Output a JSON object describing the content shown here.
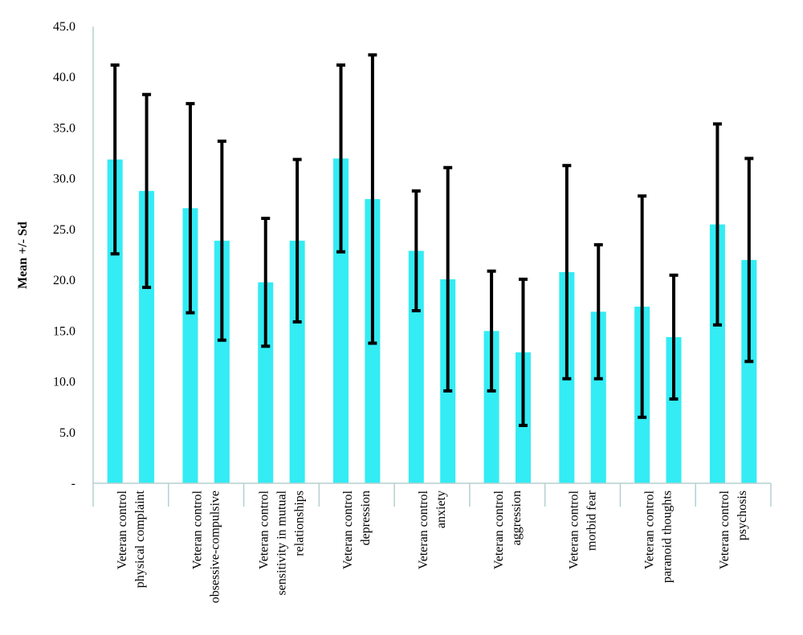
{
  "chart_data": {
    "type": "bar",
    "title": "",
    "xlabel": "",
    "ylabel": "Mean +/- Sd",
    "ylim": [
      0,
      45
    ],
    "yticks": [
      "-",
      "5.0",
      "10.0",
      "15.0",
      "20.0",
      "25.0",
      "30.0",
      "35.0",
      "40.0",
      "45.0"
    ],
    "ytick_values": [
      0,
      5,
      10,
      15,
      20,
      25,
      30,
      35,
      40,
      45
    ],
    "grid": false,
    "legend": "none",
    "bar_color": "#33ecf4",
    "error_bar_color": "#000000",
    "categories": [
      {
        "line1": "Veteran control",
        "line2": "physical complaint"
      },
      {
        "line1": "Veteran control",
        "line2": "obsessive-compulsive"
      },
      {
        "line1": "Veteran control",
        "line2": "sensitivity in mutual",
        "line3": "relationships"
      },
      {
        "line1": "Veteran control",
        "line2": "depression"
      },
      {
        "line1": "Veteran control",
        "line2": "anxiety"
      },
      {
        "line1": "Veteran control",
        "line2": "aggression"
      },
      {
        "line1": "Veteran control",
        "line2": "morbid fear"
      },
      {
        "line1": "Veteran control",
        "line2": "paranoid thoughts"
      },
      {
        "line1": "Veteran control",
        "line2": "psychosis"
      }
    ],
    "bars": [
      {
        "group": 0,
        "role": "Veteran",
        "mean": 31.9,
        "sd": 9.3
      },
      {
        "group": 0,
        "role": "control",
        "mean": 28.8,
        "sd": 9.5
      },
      {
        "group": 1,
        "role": "Veteran",
        "mean": 27.1,
        "sd": 10.3
      },
      {
        "group": 1,
        "role": "control",
        "mean": 23.9,
        "sd": 9.8
      },
      {
        "group": 2,
        "role": "Veteran",
        "mean": 19.8,
        "sd": 6.3
      },
      {
        "group": 2,
        "role": "control",
        "mean": 23.9,
        "sd": 8.0
      },
      {
        "group": 3,
        "role": "Veteran",
        "mean": 32.0,
        "sd": 9.2
      },
      {
        "group": 3,
        "role": "control",
        "mean": 28.0,
        "sd": 14.2
      },
      {
        "group": 4,
        "role": "Veteran",
        "mean": 22.9,
        "sd": 5.9
      },
      {
        "group": 4,
        "role": "control",
        "mean": 20.1,
        "sd": 11.0
      },
      {
        "group": 5,
        "role": "Veteran",
        "mean": 15.0,
        "sd": 5.9
      },
      {
        "group": 5,
        "role": "control",
        "mean": 12.9,
        "sd": 7.2
      },
      {
        "group": 6,
        "role": "Veteran",
        "mean": 20.8,
        "sd": 10.5
      },
      {
        "group": 6,
        "role": "control",
        "mean": 16.9,
        "sd": 6.6
      },
      {
        "group": 7,
        "role": "Veteran",
        "mean": 17.4,
        "sd": 10.9
      },
      {
        "group": 7,
        "role": "control",
        "mean": 14.4,
        "sd": 6.1
      },
      {
        "group": 8,
        "role": "Veteran",
        "mean": 25.5,
        "sd": 9.9
      },
      {
        "group": 8,
        "role": "control",
        "mean": 22.0,
        "sd": 10.0
      }
    ]
  }
}
